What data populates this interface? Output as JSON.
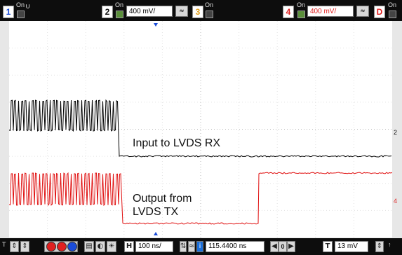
{
  "topbar": {
    "ch1": {
      "num": "1",
      "on_label": "On",
      "color": "#1a4cd8"
    },
    "ch2": {
      "num": "2",
      "on_label": "On",
      "scale": "400 mV/",
      "color": "#111111"
    },
    "ch3": {
      "num": "3",
      "on_label": "On",
      "color": "#e0a020"
    },
    "ch4": {
      "num": "4",
      "on_label": "On",
      "scale": "400 mV/",
      "color": "#e02020"
    },
    "d": {
      "label": "D",
      "on_label": "On",
      "color": "#e02020"
    }
  },
  "screen": {
    "label_rx": "Input to LVDS RX",
    "label_tx_line1": "Output from",
    "label_tx_line2": "LVDS TX",
    "marker_ch2": "2",
    "marker_ch4": "4",
    "trace_ch2_color": "#000000",
    "trace_ch4_color": "#e01010"
  },
  "bottombar": {
    "trigger_marker": "T",
    "horizontal_label": "H",
    "timebase": "100 ns/",
    "delay": "115.4400 ns",
    "acq_value": "0",
    "trigger_label": "T",
    "trigger_level": "13 mV"
  }
}
